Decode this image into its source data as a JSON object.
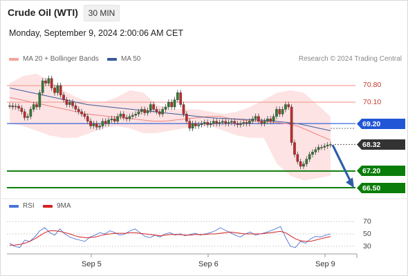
{
  "header": {
    "title": "Crude Oil (WTI)",
    "timeframe": "30 MIN",
    "datetime": "Monday, September 9, 2024 2:00:06 AM CET"
  },
  "legend": {
    "bollinger": "MA 20 + Bollinger Bands",
    "ma50": "MA 50",
    "copyright": "Research © 2024 Trading Central"
  },
  "levels": {
    "r2": "70.80",
    "r1": "70.10",
    "pivot": "69.20",
    "last": "68.32",
    "s1": "67.20",
    "s2": "66.50"
  },
  "rsi_legend": {
    "rsi": "RSI",
    "ma9": "9MA"
  },
  "rsi_ticks": [
    "70",
    "50",
    "30"
  ],
  "x_labels": [
    "Sep 5",
    "Sep 6",
    "Sep 9"
  ],
  "colors": {
    "resistance": "#f4a39a",
    "pivot": "#2156d6",
    "support": "#0b7d0b",
    "last": "#333333",
    "candle_up": "#2e7d32",
    "candle_down": "#c62828",
    "band": "#fde3e3",
    "ma20": "#f08080",
    "ma50": "#3b5998",
    "rsi": "#4a74d9",
    "rsi_ma": "#d62020",
    "arrow": "#2e5ea8"
  },
  "chart_data": [
    {
      "type": "candlestick",
      "title": "Crude Oil (WTI)",
      "timeframe": "30 MIN",
      "x_labels": [
        "Sep 5",
        "Sep 6",
        "Sep 9"
      ],
      "horizontal_levels": [
        {
          "value": 70.8,
          "kind": "resistance"
        },
        {
          "value": 70.1,
          "kind": "resistance"
        },
        {
          "value": 69.2,
          "kind": "pivot"
        },
        {
          "value": 68.32,
          "kind": "last price"
        },
        {
          "value": 67.2,
          "kind": "support"
        },
        {
          "value": 66.5,
          "kind": "support"
        }
      ],
      "ylim": [
        66.5,
        71.7
      ],
      "close": [
        69.95,
        69.9,
        69.93,
        69.85,
        69.7,
        69.45,
        69.5,
        69.8,
        70.0,
        69.9,
        70.5,
        71.0,
        70.9,
        71.1,
        70.7,
        70.5,
        70.8,
        70.4,
        70.2,
        70.0,
        70.1,
        69.95,
        69.8,
        69.7,
        69.6,
        69.5,
        69.3,
        69.1,
        69.2,
        69.05,
        69.1,
        69.3,
        69.2,
        69.35,
        69.4,
        69.3,
        69.5,
        69.6,
        69.45,
        69.4,
        69.5,
        69.55,
        69.6,
        69.7,
        69.8,
        69.65,
        69.75,
        70.0,
        69.8,
        69.7,
        69.6,
        69.8,
        69.9,
        70.1,
        69.9,
        70.2,
        70.5,
        70.0,
        69.6,
        69.3,
        69.0,
        69.2,
        69.1,
        69.15,
        69.2,
        69.25,
        69.15,
        69.2,
        69.3,
        69.2,
        69.25,
        69.3,
        69.2,
        69.25,
        69.3,
        69.2,
        69.15,
        69.2,
        69.25,
        69.2,
        69.3,
        69.4,
        69.5,
        69.3,
        69.2,
        69.3,
        69.4,
        69.3,
        69.5,
        69.8,
        69.6,
        69.8,
        70.0,
        69.9,
        68.4,
        67.9,
        67.6,
        67.4,
        67.5,
        67.7,
        67.9,
        68.0,
        68.1,
        68.2,
        68.2,
        68.25,
        68.3,
        68.32
      ],
      "ma50": [
        70.7,
        70.6,
        70.5,
        70.4,
        70.3,
        70.2,
        70.1,
        70.0,
        69.95,
        69.9,
        69.85,
        69.8,
        69.75,
        69.7,
        69.65,
        69.6,
        69.55,
        69.5,
        69.45,
        69.42,
        69.4,
        69.38,
        69.36,
        69.34,
        69.3,
        69.25,
        69.2,
        69.1,
        69.0,
        68.9
      ],
      "ma20": [
        70.3,
        70.2,
        70.1,
        70.0,
        69.9,
        69.8,
        69.7,
        69.6,
        69.55,
        69.5,
        69.45,
        69.4,
        69.35,
        69.3,
        69.3,
        69.35,
        69.4,
        69.45,
        69.5,
        69.5,
        69.4,
        69.35,
        69.3,
        69.3,
        69.25,
        69.2,
        69.1,
        68.9,
        68.7,
        68.5
      ],
      "bollinger_upper": [
        70.9,
        71.2,
        71.3,
        71.0,
        70.6,
        70.3,
        70.1,
        70.1,
        70.3,
        70.6,
        70.5,
        70.0,
        69.8,
        69.8,
        69.8,
        69.7,
        69.6,
        69.7,
        69.9,
        70.2,
        70.5,
        70.6,
        70.5,
        70.0,
        69.5
      ],
      "bollinger_lower": [
        69.2,
        69.1,
        68.9,
        68.7,
        68.6,
        68.6,
        68.8,
        69.0,
        69.1,
        69.0,
        68.8,
        68.8,
        68.9,
        69.0,
        69.1,
        69.1,
        68.9,
        68.7,
        68.6,
        68.6,
        67.5,
        67.0,
        66.8,
        66.9,
        67.0
      ]
    },
    {
      "type": "line",
      "title": "RSI",
      "ylim": [
        20,
        80
      ],
      "y_ticks": [
        70,
        50,
        30
      ],
      "series": [
        {
          "name": "RSI",
          "values": [
            35,
            30,
            28,
            40,
            38,
            45,
            55,
            60,
            52,
            48,
            58,
            50,
            45,
            42,
            40,
            38,
            45,
            48,
            52,
            50,
            55,
            52,
            48,
            50,
            55,
            58,
            52,
            46,
            44,
            48,
            45,
            50,
            52,
            48,
            50,
            47,
            49,
            51,
            48,
            50,
            52,
            55,
            60,
            56,
            52,
            48,
            45,
            50,
            53,
            48,
            50,
            52,
            55,
            58,
            62,
            45,
            30,
            28,
            38,
            35,
            42,
            46,
            45,
            48,
            50
          ]
        },
        {
          "name": "9MA",
          "values": [
            32,
            32,
            33,
            35,
            38,
            42,
            47,
            52,
            55,
            55,
            54,
            52,
            50,
            47,
            45,
            44,
            44,
            45,
            47,
            49,
            50,
            51,
            51,
            51,
            52,
            52,
            51,
            50,
            49,
            48,
            47,
            48,
            49,
            49,
            49,
            48,
            48,
            49,
            49,
            49,
            50,
            50,
            51,
            52,
            53,
            52,
            51,
            50,
            50,
            50,
            50,
            51,
            52,
            53,
            54,
            52,
            47,
            42,
            39,
            38,
            38,
            40,
            42,
            44,
            46
          ]
        }
      ]
    }
  ]
}
